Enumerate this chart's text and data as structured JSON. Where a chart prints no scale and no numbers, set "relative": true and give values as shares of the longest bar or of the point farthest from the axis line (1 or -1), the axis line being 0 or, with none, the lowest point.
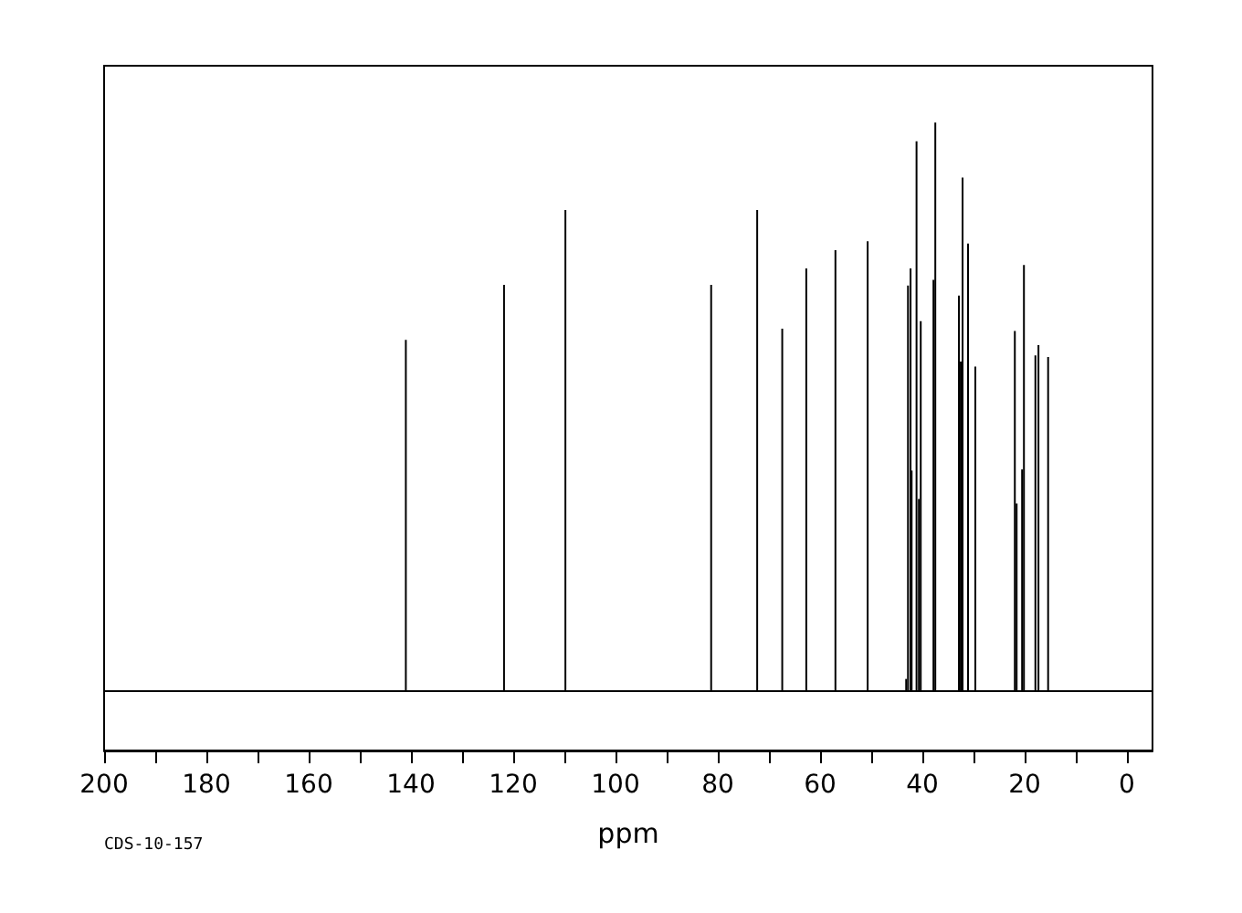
{
  "chart_data": {
    "type": "bar",
    "relative": true,
    "xlabel": "ppm",
    "annotations": [
      "CDS-10-157"
    ],
    "x": [
      141.0,
      121.8,
      109.8,
      81.3,
      72.3,
      67.4,
      62.7,
      57.0,
      50.7,
      43.17,
      42.81,
      42.31,
      42.1,
      41.14,
      40.68,
      40.32,
      37.83,
      37.47,
      32.85,
      32.49,
      32.14,
      31.07,
      29.64,
      21.92,
      21.57,
      20.5,
      20.14,
      17.9,
      17.3,
      15.41
    ],
    "series": [
      {
        "color": "#000000",
        "values": [
          0.617,
          0.714,
          0.846,
          0.714,
          0.846,
          0.637,
          0.743,
          0.775,
          0.791,
          0.02,
          0.713,
          0.743,
          0.387,
          0.967,
          0.337,
          0.65,
          0.723,
          1.0,
          0.695,
          0.579,
          0.903,
          0.787,
          0.57,
          0.633,
          0.329,
          0.389,
          0.749,
          0.59,
          0.608,
          0.587
        ]
      }
    ],
    "xlim": [
      200,
      -5
    ],
    "xticks": [
      200,
      180,
      160,
      140,
      120,
      100,
      80,
      60,
      40,
      20,
      0
    ],
    "grid": false
  }
}
